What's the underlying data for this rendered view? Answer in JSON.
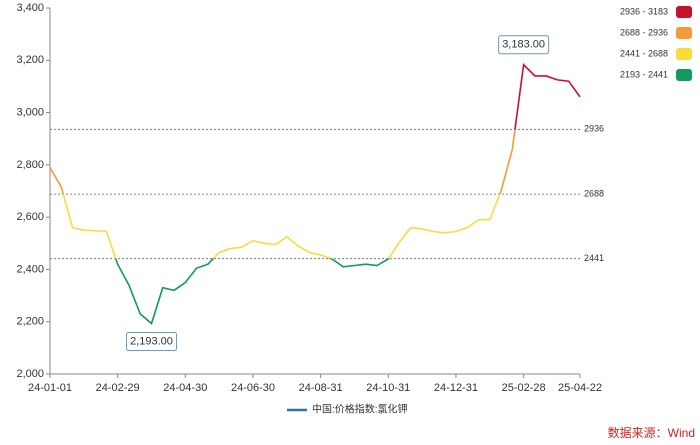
{
  "chart_data": {
    "type": "line",
    "categories": [
      "24-01-01",
      null,
      null,
      null,
      null,
      null,
      "24-02-29",
      null,
      null,
      null,
      null,
      null,
      "24-04-30",
      null,
      null,
      null,
      null,
      null,
      "24-06-30",
      null,
      null,
      null,
      null,
      null,
      "24-08-31",
      null,
      null,
      null,
      null,
      null,
      "24-10-31",
      null,
      null,
      null,
      null,
      null,
      "24-12-31",
      null,
      null,
      null,
      null,
      null,
      "25-02-28",
      null,
      null,
      null,
      null,
      "25-04-22"
    ],
    "series": [
      {
        "name": "中国:价格指数:氯化钾",
        "color": "#2f6eb5",
        "values": [
          2790,
          2715,
          2560,
          2550,
          2548,
          2546,
          2420,
          2340,
          2230,
          2193,
          2330,
          2320,
          2350,
          2405,
          2420,
          2465,
          2480,
          2485,
          2510,
          2500,
          2495,
          2525,
          2490,
          2465,
          2455,
          2440,
          2410,
          2415,
          2420,
          2415,
          2440,
          2505,
          2560,
          2555,
          2545,
          2540,
          2545,
          2560,
          2590,
          2590,
          2700,
          2860,
          3183,
          3140,
          3140,
          3125,
          3120,
          3060
        ]
      }
    ],
    "ylim": [
      2000,
      3400
    ],
    "yticks": [
      {
        "value": 2000,
        "label": "2,000"
      },
      {
        "value": 2200,
        "label": "2,200"
      },
      {
        "value": 2400,
        "label": "2,400"
      },
      {
        "value": 2600,
        "label": "2,600"
      },
      {
        "value": 2800,
        "label": "2,800"
      },
      {
        "value": 3000,
        "label": "3,000"
      },
      {
        "value": 3200,
        "label": "3,200"
      },
      {
        "value": 3400,
        "label": "3,400"
      }
    ],
    "mark_lines": [
      2936,
      2688,
      2441
    ],
    "max_label": "3,183.00",
    "min_label": "2,193.00",
    "pieces": [
      {
        "label": "2936 - 3183",
        "min": 2936,
        "max": 3183,
        "color": "#c8102e"
      },
      {
        "label": "2688 - 2936",
        "min": 2688,
        "max": 2936,
        "color": "#f59a3a"
      },
      {
        "label": "2441 - 2688",
        "min": 2441,
        "max": 2688,
        "color": "#f7dc3c"
      },
      {
        "label": "2193 - 2441",
        "min": 2193,
        "max": 2441,
        "color": "#129a5e"
      }
    ],
    "source": "数据来源：Wind"
  }
}
